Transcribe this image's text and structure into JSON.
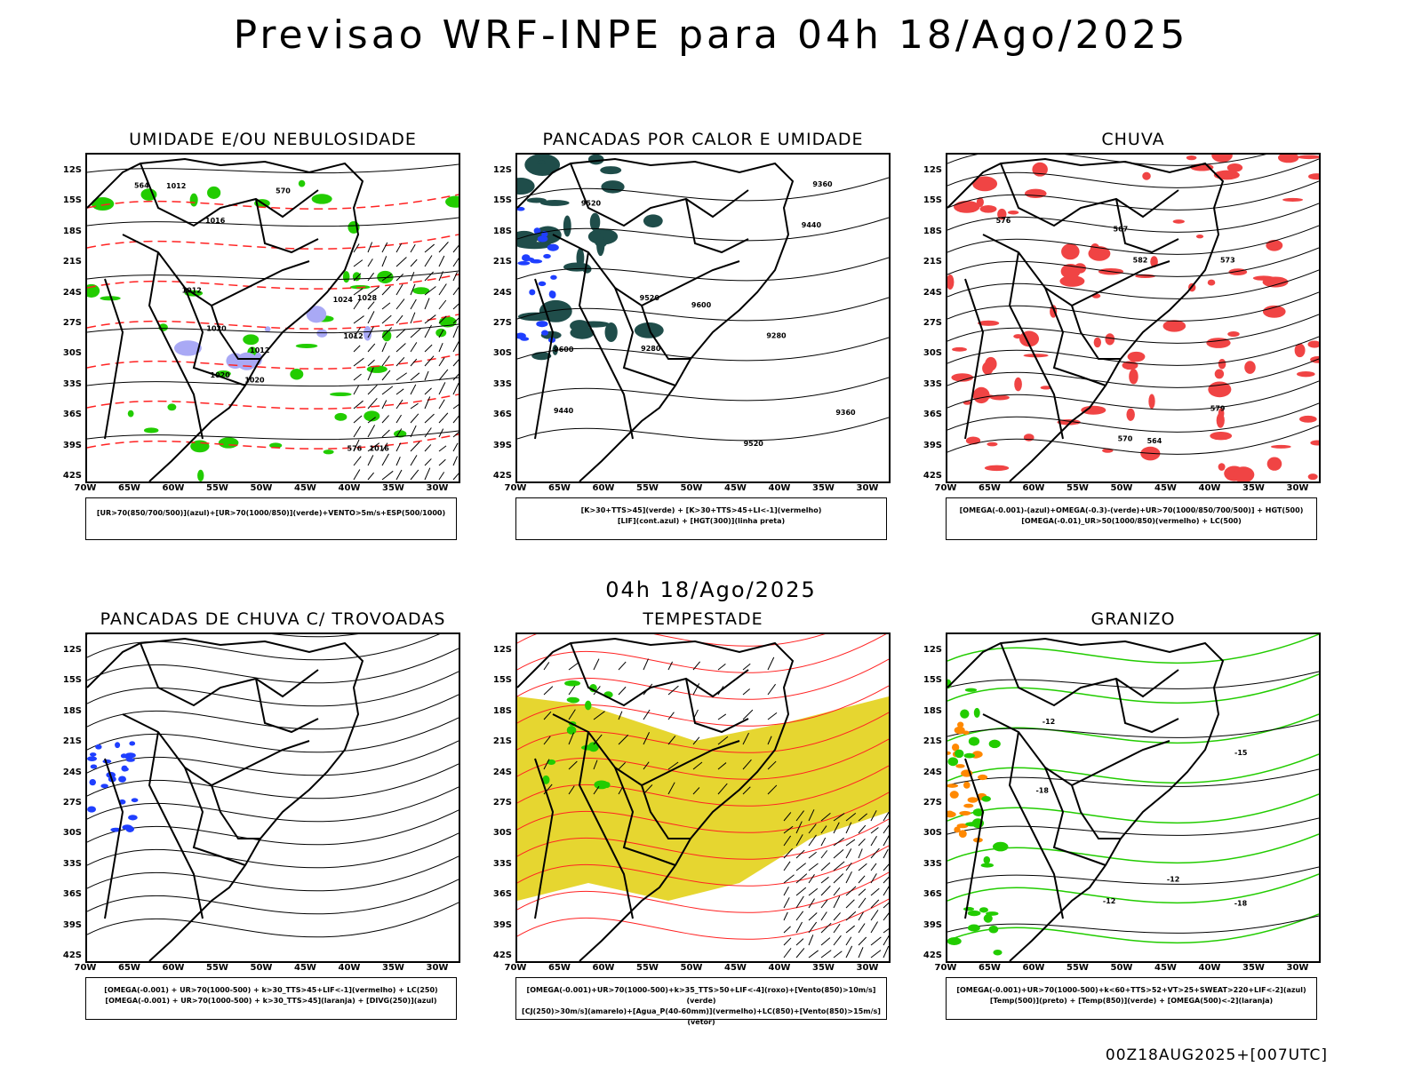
{
  "main_title": "Previsao WRF-INPE  para 04h 18/Ago/2025",
  "mid_title": "04h 18/Ago/2025",
  "footer": "00Z18AUG2025+[007UTC]",
  "lat_labels": [
    "12S",
    "15S",
    "18S",
    "21S",
    "24S",
    "27S",
    "30S",
    "33S",
    "36S",
    "39S",
    "42S"
  ],
  "lon_labels": [
    "70W",
    "65W",
    "60W",
    "55W",
    "50W",
    "45W",
    "40W",
    "35W",
    "30W"
  ],
  "colors": {
    "humid_blue": "#a9a9f5",
    "green": "#22cc00",
    "red": "#ff2222",
    "rain_red": "#f04444",
    "dark_teal": "#1f4d4a",
    "blue": "#1f3fff",
    "yellow": "#e6d630",
    "orange": "#ff8800"
  },
  "panels": [
    {
      "id": "umidade",
      "title": "UMIDADE E/OU NEBULOSIDADE",
      "legend": [
        "[UR>70(850/700/500)](azul)+[UR>70(1000/850)](verde)+VENTO>5m/s+ESP(500/1000)"
      ],
      "contour_labels": [
        "1012",
        "1012",
        "1012",
        "1012",
        "1016",
        "1016",
        "1020",
        "1020",
        "1020",
        "1024",
        "1028",
        "570",
        "564",
        "576"
      ]
    },
    {
      "id": "pancadas-calor",
      "title": "PANCADAS POR CALOR E UMIDADE",
      "legend": [
        "[K>30+TTS>45](verde) + [K>30+TTS>45+LI<-1](vermelho)",
        "[LIF](cont.azul) + [HGT(300)](linha preta)"
      ],
      "contour_labels": [
        "9600",
        "9600",
        "9520",
        "9520",
        "9520",
        "9440",
        "9440",
        "9360",
        "9280",
        "9360",
        "9280"
      ]
    },
    {
      "id": "chuva",
      "title": "CHUVA",
      "legend": [
        "[OMEGA(-0.001)-(azul)+OMEGA(-0.3)-(verde)+UR>70(1000/850/700/500)] + HGT(500)",
        "[OMEGA(-0.01)_UR>50(1000/850)(vermelho) + LC(500)"
      ],
      "contour_labels": [
        "582",
        "579",
        "576",
        "573",
        "570",
        "567",
        "564"
      ]
    },
    {
      "id": "pancadas-trovoadas",
      "title": "PANCADAS DE CHUVA C/ TROVOADAS",
      "legend": [
        "[OMEGA(-0.001) + UR>70(1000-500) + k>30_TTS>45+LIF<-1](vermelho) + LC(250)",
        "[OMEGA(-0.001) + UR>70(1000-500) + k>30_TTS>45](laranja) + [DIVG(250)](azul)"
      ],
      "contour_labels": []
    },
    {
      "id": "tempestade",
      "title": "TEMPESTADE",
      "legend": [
        "[OMEGA(-0.001)+UR>70(1000-500)+k>35_TTS>50+LIF<-4](roxo)+[Vento(850)>10m/s](verde)",
        "[CJ(250)>30m/s](amarelo)+[Agua_P(40-60mm)](vermelho)+LC(850)+[Vento(850)>15m/s](vetor)"
      ],
      "contour_labels": []
    },
    {
      "id": "granizo",
      "title": "GRANIZO",
      "legend": [
        "[OMEGA(-0.001)+UR>70(1000-500)+k<60+TTS>52+VT>25+SWEAT>220+LIF<-2](azul)",
        "[Temp(500)](preto) + [Temp(850)](verde) + [OMEGA(500)<-2](laranja)"
      ],
      "contour_labels": [
        "-12",
        "-18",
        "-15",
        "-12",
        "-18",
        "-12"
      ]
    }
  ]
}
